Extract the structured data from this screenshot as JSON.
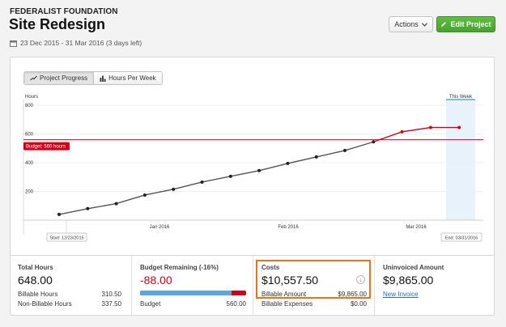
{
  "header": {
    "client_name": "FEDERALIST FOUNDATION",
    "project_title": "Site Redesign",
    "date_range": "23 Dec 2015 - 31 Mar 2016 (3 days left)",
    "actions_label": "Actions",
    "edit_label": "Edit Project"
  },
  "chart_tabs": [
    "Project Progress",
    "Hours Per Week"
  ],
  "chart_data": {
    "type": "line",
    "ylabel": "Hours",
    "ylim": [
      0,
      800
    ],
    "y_ticks": [
      "800",
      "600",
      "400",
      "200"
    ],
    "x_ticks": [
      "Jan 2016",
      "Feb 2016",
      "Mar 2016"
    ],
    "start_label": "Start: 12/23/2015",
    "end_label": "End: 03/31/2016",
    "this_week_label": "This Week",
    "budget": {
      "label": "Budget: 560 hours",
      "value": 560
    },
    "series": [
      {
        "role": "actual",
        "color": "#555555",
        "values": [
          40,
          80,
          115,
          175,
          215,
          265,
          305,
          345,
          395,
          440,
          485,
          545
        ]
      },
      {
        "role": "over budget",
        "color": "#d0021b",
        "values": [
          545,
          615,
          645,
          645
        ]
      }
    ]
  },
  "stats": {
    "total_hours": {
      "label": "Total Hours",
      "value": "648.00",
      "billable_label": "Billable Hours",
      "billable": "310.50",
      "non_billable_label": "Non-Billable Hours",
      "non_billable": "337.50"
    },
    "budget_remaining": {
      "label": "Budget Remaining (-16%)",
      "value": "-88.00",
      "budget_label": "Budget",
      "budget": "560.00",
      "progress": 0.86
    },
    "costs": {
      "label": "Costs",
      "value": "$10,557.50",
      "info_icon": "info-icon",
      "billable_label": "Billable Amount",
      "billable": "$9,865.00",
      "expenses_label": "Billable Expenses",
      "expenses": "$0.00"
    },
    "uninvoiced": {
      "label": "Uninvoiced Amount",
      "value": "$9,865.00",
      "link": "New Invoice"
    }
  },
  "colors": {
    "accent_green": "#52b03a",
    "over_budget_red": "#d0021b",
    "highlight_orange": "#e8731a",
    "progress_blue": "#5ba6e0"
  }
}
